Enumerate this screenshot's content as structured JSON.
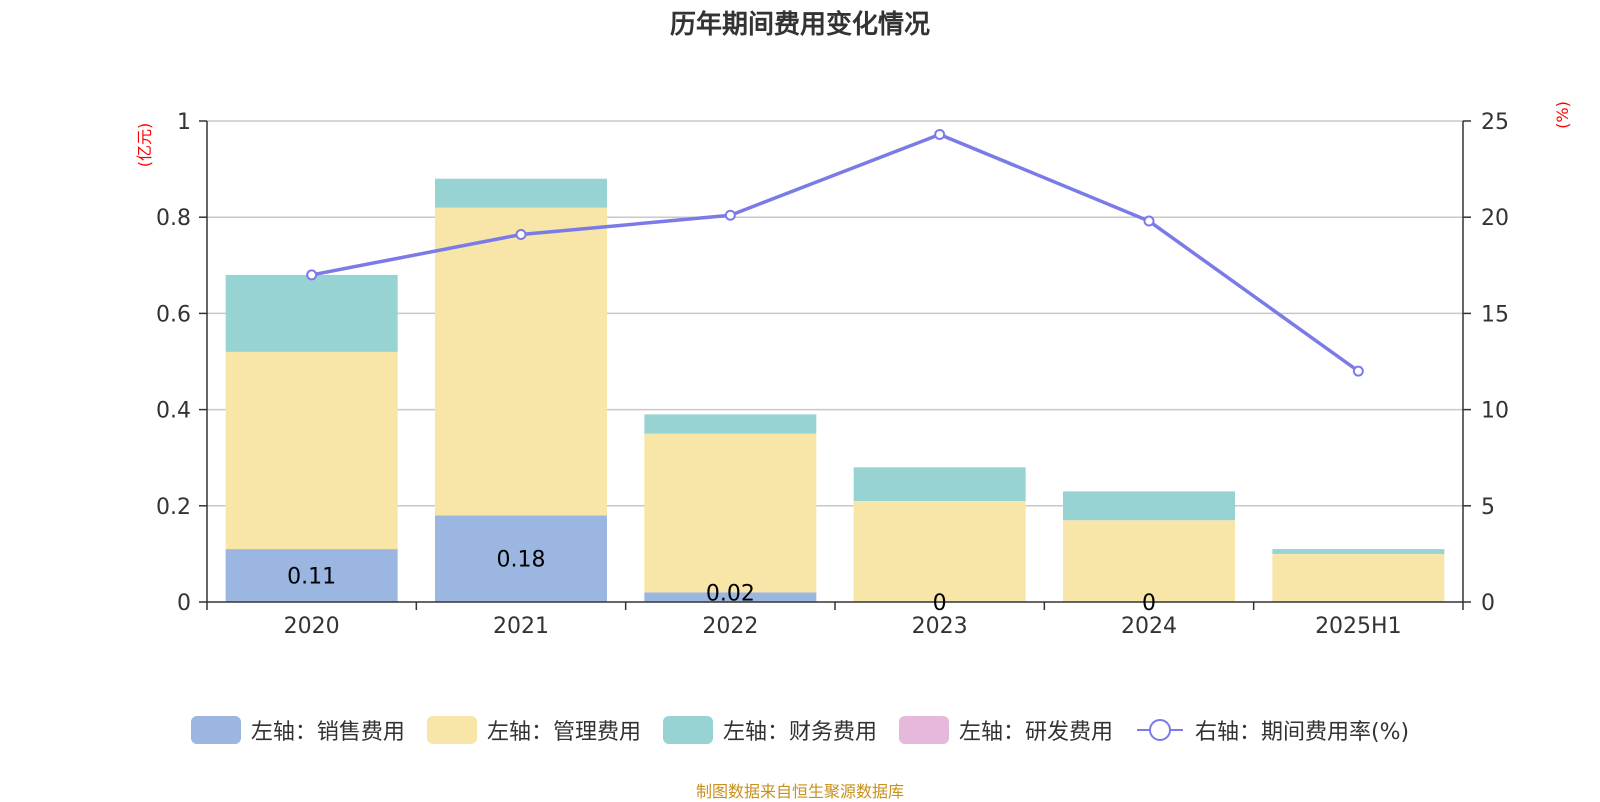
{
  "title": "历年期间费用变化情况",
  "source_note": "制图数据来自恒生聚源数据库",
  "colors": {
    "sales": "#9bb7e1",
    "admin": "#f7e6a8",
    "finance": "#97d3d3",
    "rd": "#e6b8db",
    "rate": "#7b7be8",
    "axis_unit": "#ff0000",
    "source": "#c8901c"
  },
  "chart_data": {
    "type": "bar",
    "title": "历年期间费用变化情况",
    "categories": [
      "2020",
      "2021",
      "2022",
      "2023",
      "2024",
      "2025H1"
    ],
    "left_axis": {
      "unit": "(亿元)",
      "ylim": [
        0,
        1
      ],
      "ticks": [
        "0",
        "0.2",
        "0.4",
        "0.6",
        "0.8",
        "1"
      ]
    },
    "right_axis": {
      "unit": "(%)",
      "ylim": [
        0,
        25
      ],
      "ticks": [
        "0",
        "5",
        "10",
        "15",
        "20",
        "25"
      ]
    },
    "series": [
      {
        "name": "左轴：销售费用",
        "type": "bar",
        "stack": "left",
        "values": [
          0.11,
          0.18,
          0.02,
          0,
          0,
          0
        ],
        "labels": [
          "0.11",
          "0.18",
          "0.02",
          "0",
          "0",
          ""
        ]
      },
      {
        "name": "左轴：管理费用",
        "type": "bar",
        "stack": "left",
        "values": [
          0.41,
          0.64,
          0.33,
          0.21,
          0.17,
          0.1
        ]
      },
      {
        "name": "左轴：财务费用",
        "type": "bar",
        "stack": "left",
        "values": [
          0.16,
          0.06,
          0.04,
          0.07,
          0.06,
          0.01
        ]
      },
      {
        "name": "左轴：研发费用",
        "type": "bar",
        "stack": "left",
        "values": [
          0,
          0,
          0,
          0,
          0,
          0
        ]
      },
      {
        "name": "右轴：期间费用率(%)",
        "type": "line",
        "axis": "right",
        "values": [
          17.0,
          19.1,
          20.1,
          24.3,
          19.8,
          12.0
        ]
      }
    ],
    "grid": true,
    "legend_position": "bottom"
  }
}
